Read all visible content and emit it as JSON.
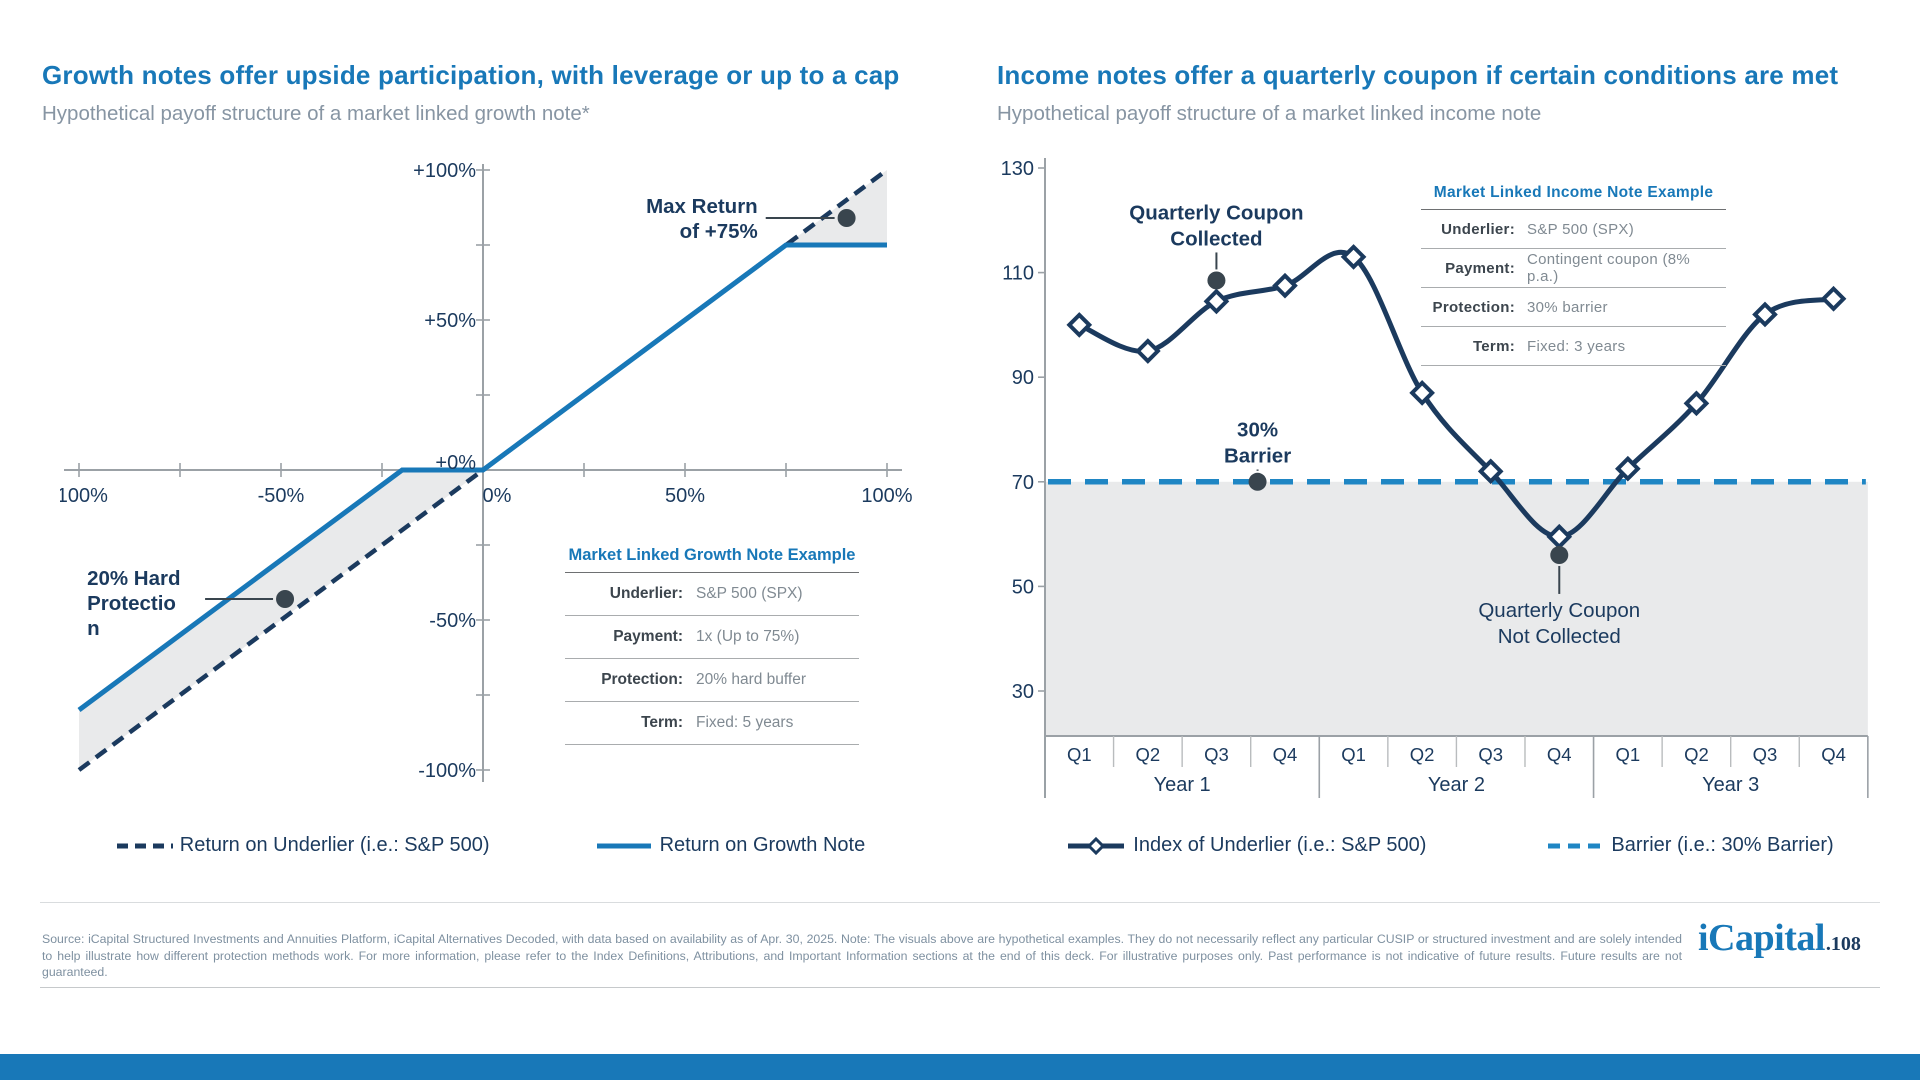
{
  "theme": {
    "accent_blue": "#1878B8",
    "navy": "#1B3A5E",
    "barrier_blue": "#1F86C4",
    "shade_gray": "#E9EAEB",
    "axis_gray": "#9BA1A6",
    "separator_gray": "#B9BCBE",
    "subtitle_gray": "#8795A3",
    "footer_gray": "#7E90A0",
    "annotation_dot": "#39454E"
  },
  "growth": {
    "title": "Growth notes offer upside participation, with leverage or up to a cap",
    "subtitle": "Hypothetical payoff structure of a market linked growth note*",
    "legend": [
      {
        "label": "Return on Underlier (i.e.: S&P 500)",
        "style": "dashed-navy"
      },
      {
        "label": "Return on Growth Note",
        "style": "solid-blue"
      }
    ],
    "table": {
      "title": "Market Linked Growth Note Example",
      "rows": [
        {
          "label": "Underlier:",
          "value": "S&P 500 (SPX)"
        },
        {
          "label": "Payment:",
          "value": "1x (Up to 75%)"
        },
        {
          "label": "Protection:",
          "value": "20% hard buffer"
        },
        {
          "label": "Term:",
          "value": "Fixed: 5 years"
        }
      ]
    }
  },
  "income": {
    "title": "Income notes offer a quarterly coupon if certain conditions are met",
    "subtitle": "Hypothetical payoff structure of a market linked income note",
    "legend": [
      {
        "label": "Index of Underlier (i.e.: S&P 500)",
        "style": "line-diamond-navy"
      },
      {
        "label": "Barrier (i.e.: 30% Barrier)",
        "style": "dashed-lightblue"
      }
    ],
    "table": {
      "title": "Market Linked Income Note Example",
      "rows": [
        {
          "label": "Underlier:",
          "value": "S&P 500 (SPX)"
        },
        {
          "label": "Payment:",
          "value": "Contingent coupon (8% p.a.)"
        },
        {
          "label": "Protection:",
          "value": "30% barrier"
        },
        {
          "label": "Term:",
          "value": "Fixed: 3 years"
        }
      ]
    }
  },
  "chart_data": [
    {
      "id": "growth-payoff",
      "type": "line",
      "title": "Hypothetical payoff structure of a market linked growth note",
      "xlim": [
        -100,
        100
      ],
      "ylim": [
        -100,
        100
      ],
      "minor_tick_step": 25,
      "x_tick_values": [
        -100,
        -50,
        0,
        50,
        100
      ],
      "x_tick_labels": [
        "-100%",
        "-50%",
        "0%",
        "50%",
        "100%"
      ],
      "y_tick_values": [
        100,
        50,
        0,
        -50,
        -100
      ],
      "y_tick_labels": [
        "+100%",
        "+50%",
        "+0%",
        "-50%",
        "-100%"
      ],
      "series": [
        {
          "name": "Return on Underlier (i.e.: S&P 500)",
          "style": "dashed",
          "color": "#1B3A5E",
          "points": [
            [
              -100,
              -100
            ],
            [
              100,
              100
            ]
          ]
        },
        {
          "name": "Return on Growth Note",
          "style": "solid",
          "color": "#1878B8",
          "points": [
            [
              -100,
              -80
            ],
            [
              -20,
              0
            ],
            [
              0,
              0
            ],
            [
              75,
              75
            ],
            [
              100,
              75
            ]
          ]
        }
      ],
      "shaded_regions": [
        {
          "name": "buffer-zone",
          "points": [
            [
              -100,
              -80
            ],
            [
              -20,
              0
            ],
            [
              0,
              0
            ],
            [
              -100,
              -100
            ]
          ]
        },
        {
          "name": "cap-zone",
          "points": [
            [
              75,
              75
            ],
            [
              100,
              100
            ],
            [
              100,
              75
            ]
          ]
        }
      ],
      "annotations": [
        {
          "lines": [
            "Max Return",
            "of +75%"
          ],
          "anchor": "end",
          "label_at": [
            68,
            88
          ],
          "dot": [
            90,
            84
          ]
        },
        {
          "lines": [
            "20% Hard",
            "Protectio",
            "n"
          ],
          "anchor": "start",
          "label_at": [
            -98,
            -36
          ],
          "dot": [
            -49,
            -43
          ]
        }
      ]
    },
    {
      "id": "income-payoff",
      "type": "line",
      "title": "Hypothetical payoff structure of a market linked income note",
      "categories": [
        "Q1",
        "Q2",
        "Q3",
        "Q4",
        "Q1",
        "Q2",
        "Q3",
        "Q4",
        "Q1",
        "Q2",
        "Q3",
        "Q4"
      ],
      "year_groups": [
        "Year 1",
        "Year 2",
        "Year 3"
      ],
      "series_name": "Index of Underlier (i.e.: S&P 500)",
      "values": [
        100,
        95,
        104.5,
        107.5,
        113,
        87,
        72,
        59.5,
        72.5,
        85,
        102,
        105
      ],
      "barrier_name": "Barrier (i.e.: 30% Barrier)",
      "barrier_value": 70,
      "ylim": [
        30,
        130
      ],
      "y_tick_values": [
        130,
        110,
        90,
        70,
        50,
        30
      ],
      "y_tick_labels": [
        "130",
        "110",
        "90",
        "70",
        "50",
        "30"
      ],
      "annotations": [
        {
          "lines": [
            "Quarterly Coupon",
            "Collected"
          ],
          "x_index": 2,
          "dot_value": 108.5,
          "label_value": 121.5,
          "side": "above",
          "bold": true
        },
        {
          "lines": [
            "30%",
            "Barrier"
          ],
          "x_index": 2.6,
          "dot_value": 70,
          "label_value": 80,
          "side": "above",
          "bold": true
        },
        {
          "lines": [
            "Quarterly Coupon",
            "Not Collected"
          ],
          "x_index": 7,
          "dot_value": 56,
          "label_value": 45.5,
          "side": "below",
          "bold": false
        }
      ]
    }
  ],
  "page": {
    "footer": "Source: iCapital Structured Investments and Annuities Platform, iCapital Alternatives Decoded, with data based on availability as of Apr. 30, 2025. Note: The visuals above are hypothetical examples. They do not necessarily reflect any particular CUSIP or structured investment and are solely intended to help illustrate how different protection methods work. For more information, please refer to the Index Definitions, Attributions, and Important Information sections at the end of this deck. For illustrative purposes only. Past performance is not indicative of future results. Future results are not guaranteed.",
    "logo_brand": "iCapital",
    "logo_pageref": ".108"
  }
}
